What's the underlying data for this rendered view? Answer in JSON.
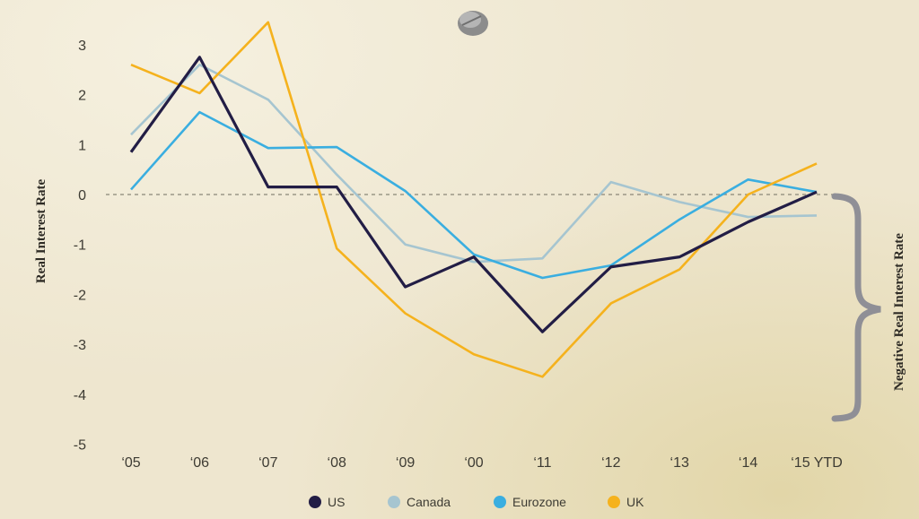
{
  "chart_data": {
    "type": "line",
    "categories": [
      "‘05",
      "‘06",
      "‘07",
      "‘08",
      "‘09",
      "‘00",
      "‘11",
      "‘12",
      "‘13",
      "‘14",
      "‘15 YTD"
    ],
    "ylim": [
      -5,
      3.5
    ],
    "yticks": [
      3,
      2,
      1,
      0,
      -1,
      -2,
      -3,
      -4,
      -5
    ],
    "ylabel": "Real Interest Rate",
    "annotation": "Negative Real Interest Rate",
    "series": [
      {
        "name": "US",
        "color": "#221d45",
        "values": [
          0.85,
          2.75,
          0.15,
          0.15,
          -1.85,
          -1.25,
          -2.75,
          -1.45,
          -1.25,
          -0.55,
          0.05
        ]
      },
      {
        "name": "Canada",
        "color": "#a6c5d0",
        "values": [
          1.2,
          2.6,
          1.9,
          0.4,
          -1.0,
          -1.35,
          -1.28,
          0.25,
          -0.15,
          -0.45,
          -0.42
        ]
      },
      {
        "name": "Eurozone",
        "color": "#3aaee0",
        "values": [
          0.1,
          1.65,
          0.93,
          0.95,
          0.07,
          -1.2,
          -1.67,
          -1.42,
          -0.5,
          0.3,
          0.05
        ]
      },
      {
        "name": "UK",
        "color": "#f5b21d",
        "values": [
          2.6,
          2.03,
          3.45,
          -1.08,
          -2.38,
          -3.2,
          -3.65,
          -2.18,
          -1.5,
          0.0,
          0.62
        ]
      }
    ],
    "zero_line": "dashed",
    "legend_position": "bottom-center"
  }
}
